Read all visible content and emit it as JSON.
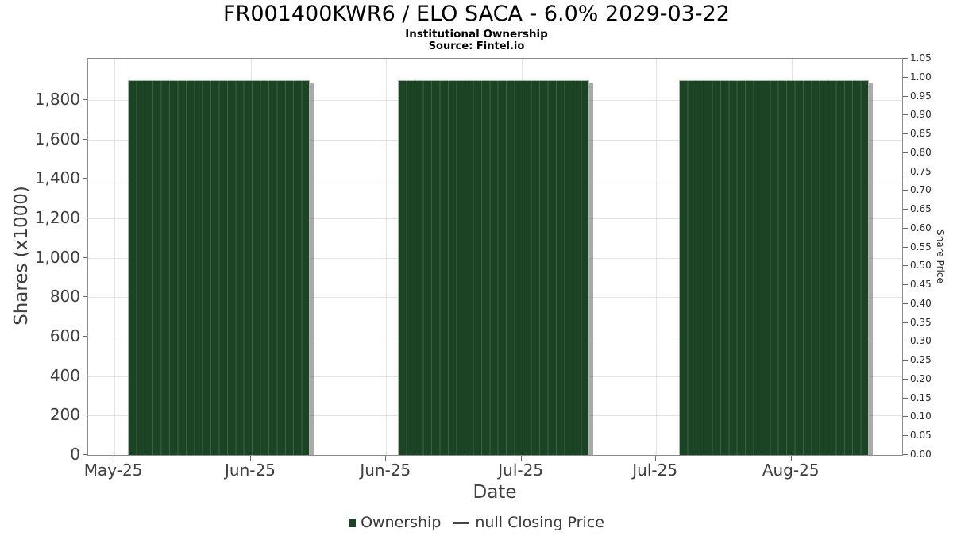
{
  "chart_data": {
    "type": "bar",
    "title": "FR001400KWR6 / ELO SACA - 6.0% 2029-03-22",
    "subtitle": "Institutional Ownership",
    "source": "Source: Fintel.io",
    "xlabel": "Date",
    "ylabel_left": "Shares (x1000)",
    "ylabel_right": "Share Price",
    "x_tick_labels": [
      "May-25",
      "Jun-25",
      "Jun-25",
      "Jul-25",
      "Jul-25",
      "Aug-25"
    ],
    "y_left_ticks": [
      0,
      200,
      400,
      600,
      800,
      1000,
      1200,
      1400,
      1600,
      1800
    ],
    "y_left_tick_labels": [
      "0",
      "200",
      "400",
      "600",
      "800",
      "1,000",
      "1,200",
      "1,400",
      "1,600",
      "1,800"
    ],
    "ylim_left": [
      0,
      2010
    ],
    "y_right_tick_labels": [
      "0.00",
      "0.05",
      "0.10",
      "0.15",
      "0.20",
      "0.25",
      "0.30",
      "0.35",
      "0.40",
      "0.45",
      "0.50",
      "0.55",
      "0.60",
      "0.65",
      "0.70",
      "0.75",
      "0.80",
      "0.85",
      "0.90",
      "0.95",
      "1.00",
      "1.05"
    ],
    "ylim_right": [
      0,
      1.05
    ],
    "grid": true,
    "legend_position": "bottom",
    "legend": [
      {
        "label": "Ownership",
        "marker": "square",
        "color": "#1b4424"
      },
      {
        "label": "null Closing Price",
        "marker": "line",
        "color": "#454545"
      }
    ],
    "series": [
      {
        "name": "Ownership",
        "axis": "left",
        "unit": "shares x1000",
        "bar_value": 1900,
        "groups": [
          {
            "bars": 22,
            "value": 1900
          },
          {
            "bars": 23,
            "value": 1900
          },
          {
            "bars": 23,
            "value": 1900
          }
        ]
      },
      {
        "name": "null Closing Price",
        "axis": "right",
        "values": []
      }
    ],
    "colors": {
      "bar": "#1b4424",
      "bar_separator": "#3f5f47",
      "bar_outline": "#b2b6a6",
      "bar_shadow": "rgba(118,118,118,0.62)",
      "grid": "#e3e3e3",
      "plot_border": "#8c8c8c",
      "tick": "#666666",
      "text": "#3f3f3f",
      "title": "#000000"
    }
  }
}
